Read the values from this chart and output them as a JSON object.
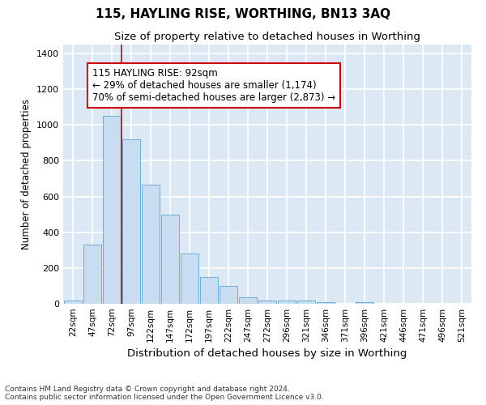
{
  "title": "115, HAYLING RISE, WORTHING, BN13 3AQ",
  "subtitle": "Size of property relative to detached houses in Worthing",
  "xlabel": "Distribution of detached houses by size in Worthing",
  "ylabel": "Number of detached properties",
  "categories": [
    "22sqm",
    "47sqm",
    "72sqm",
    "97sqm",
    "122sqm",
    "147sqm",
    "172sqm",
    "197sqm",
    "222sqm",
    "247sqm",
    "272sqm",
    "296sqm",
    "321sqm",
    "346sqm",
    "371sqm",
    "396sqm",
    "421sqm",
    "446sqm",
    "471sqm",
    "496sqm",
    "521sqm"
  ],
  "values": [
    20,
    330,
    1050,
    920,
    665,
    500,
    280,
    150,
    100,
    38,
    20,
    20,
    18,
    10,
    0,
    10,
    0,
    0,
    0,
    0,
    0
  ],
  "bar_color": "#c9ddf0",
  "bar_edge_color": "#6baed6",
  "vline_color": "#cc0000",
  "vline_x": 2.5,
  "annotation_text": "115 HAYLING RISE: 92sqm\n← 29% of detached houses are smaller (1,174)\n70% of semi-detached houses are larger (2,873) →",
  "annotation_box_facecolor": "white",
  "annotation_box_edgecolor": "#cc0000",
  "ylim": [
    0,
    1450
  ],
  "yticks": [
    0,
    200,
    400,
    600,
    800,
    1000,
    1200,
    1400
  ],
  "fig_bg_color": "#ffffff",
  "plot_bg_color": "#dde8f5",
  "grid_color": "#ffffff",
  "footer_text": "Contains HM Land Registry data © Crown copyright and database right 2024.\nContains public sector information licensed under the Open Government Licence v3.0."
}
